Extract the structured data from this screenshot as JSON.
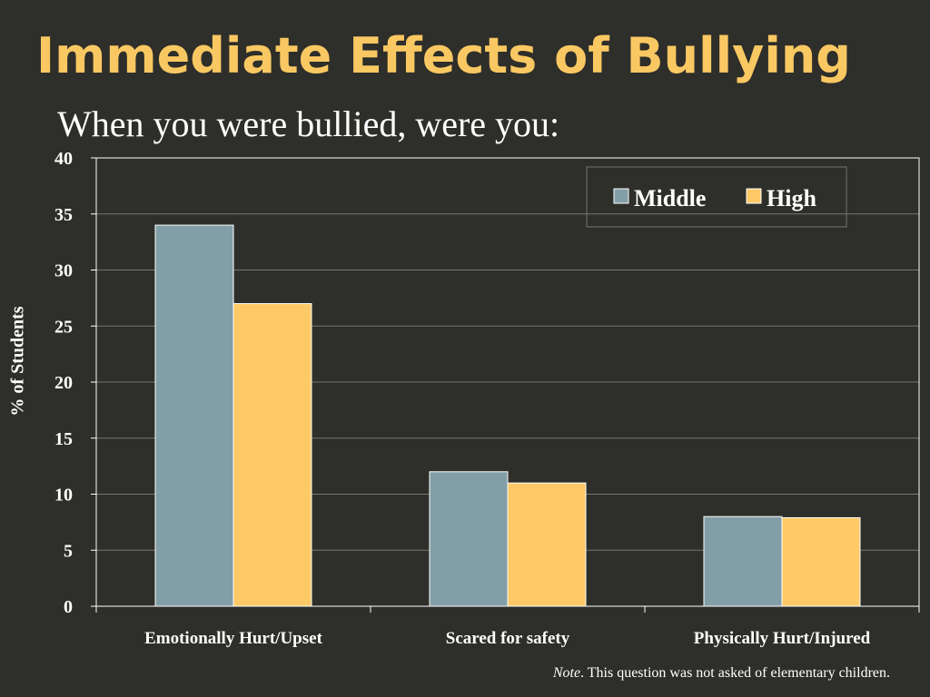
{
  "title": "Immediate Effects of Bullying",
  "subtitle": "When you were bullied, were you:",
  "note": {
    "emphasis": "Note",
    "text": ". This question was not asked of elementary children."
  },
  "chart_data": {
    "type": "bar",
    "ylabel": "% of Students",
    "ylim": [
      0,
      40
    ],
    "yticks": [
      "0",
      "5",
      "10",
      "15",
      "20",
      "25",
      "30",
      "35",
      "40"
    ],
    "categories": [
      "Emotionally Hurt/Upset",
      "Scared for safety",
      "Physically Hurt/Injured"
    ],
    "series": [
      {
        "name": "Middle",
        "values": [
          34,
          12,
          8
        ]
      },
      {
        "name": "High",
        "values": [
          27,
          11,
          7.9
        ]
      }
    ],
    "colors": [
      "#829ea6",
      "#fec966"
    ],
    "grid": true,
    "legend": "top-right"
  }
}
